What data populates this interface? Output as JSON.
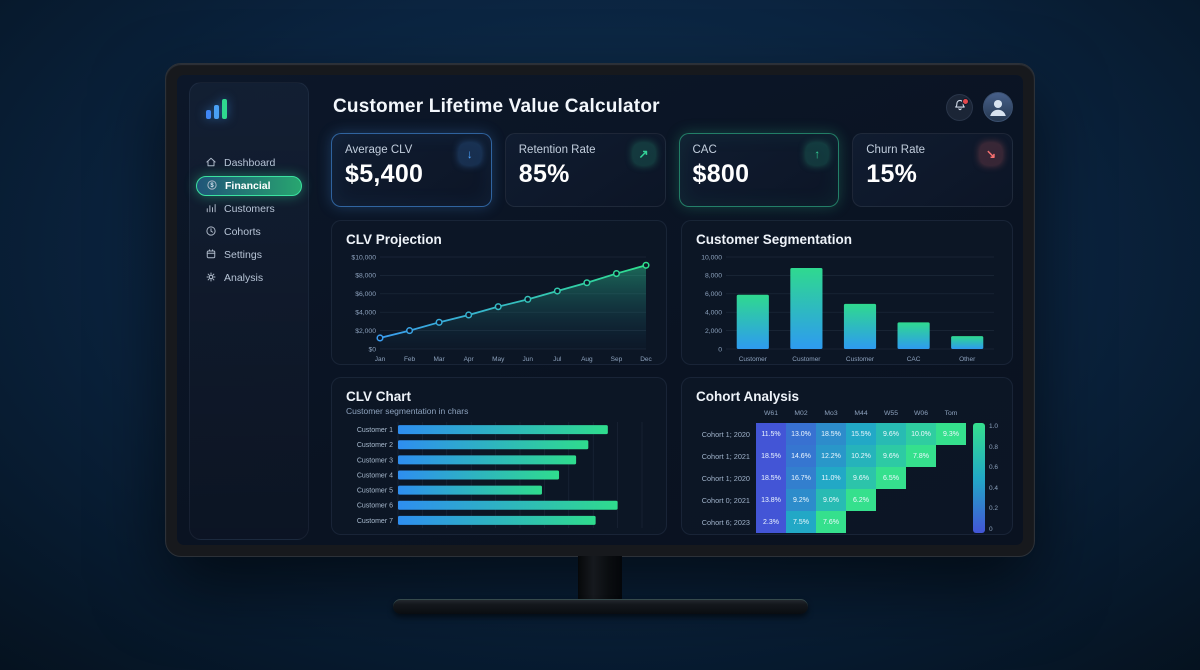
{
  "header": {
    "title": "Customer Lifetime Value Calculator",
    "notification_badge": true
  },
  "colors": {
    "accent_blue": "#3b82f6",
    "accent_green": "#34d399",
    "accent_red": "#ef4444",
    "line_start": "#3b9df0",
    "line_end": "#2fe08d",
    "bar_top": "#2fd98f",
    "bar_bottom": "#2e9bf0",
    "hbar_left": "#2e8ef0",
    "hbar_right": "#2fdc8d",
    "heat_low": "#4355d6",
    "heat_mid": "#22a8c6",
    "heat_high": "#35e08d"
  },
  "sidebar": {
    "logo": "bar-chart-logo",
    "items": [
      {
        "label": "Dashboard",
        "icon": "home-icon",
        "active": false
      },
      {
        "label": "Financial",
        "icon": "dollar-circle-icon",
        "active": true
      },
      {
        "label": "Customers",
        "icon": "bar-chart-icon",
        "active": false
      },
      {
        "label": "Cohorts",
        "icon": "clock-icon",
        "active": false
      },
      {
        "label": "Settings",
        "icon": "calendar-icon",
        "active": false
      },
      {
        "label": "Analysis",
        "icon": "gear-icon",
        "active": false
      }
    ]
  },
  "kpis": [
    {
      "label": "Average CLV",
      "value": "$5,400",
      "icon": "arrow-down-icon",
      "glyph": "↓",
      "accent": "#4da3ff",
      "glow": true
    },
    {
      "label": "Retention Rate",
      "value": "85%",
      "icon": "arrow-up-right-icon",
      "glyph": "↗",
      "accent": "#34d399",
      "glow": false
    },
    {
      "label": "CAC",
      "value": "$800",
      "icon": "arrow-up-icon",
      "glyph": "↑",
      "accent": "#34d399",
      "glow": true
    },
    {
      "label": "Churn Rate",
      "value": "15%",
      "icon": "arrow-down-right-icon",
      "glyph": "↘",
      "accent": "#f87171",
      "glow": false
    }
  ],
  "charts": {
    "projection": {
      "type": "line",
      "title": "CLV Projection",
      "x": [
        "Jan",
        "Feb",
        "Mar",
        "Apr",
        "May",
        "Jun",
        "Jul",
        "Aug",
        "Sep",
        "Dec"
      ],
      "values": [
        1200,
        2000,
        2900,
        3700,
        4600,
        5400,
        6300,
        7200,
        8200,
        9100
      ],
      "y_ticks": [
        "$10,000",
        "$8,000",
        "$6,000",
        "$4,000",
        "$2,000",
        "$0"
      ],
      "ylim": [
        0,
        10000
      ],
      "grid": true
    },
    "segmentation": {
      "type": "bar",
      "title": "Customer Segmentation",
      "categories": [
        "Customer",
        "Customer",
        "Customer",
        "CAC",
        "Other"
      ],
      "values": [
        5900,
        8800,
        4900,
        2900,
        1400
      ],
      "y_ticks": [
        "10,000",
        "8,000",
        "6,000",
        "4,000",
        "2,000",
        "0"
      ],
      "ylim": [
        0,
        10000
      ],
      "grid": true
    },
    "clv_chart": {
      "type": "bar-horizontal",
      "title": "CLV Chart",
      "subtitle": "Customer segmentation in chars",
      "categories": [
        "Customer 1",
        "Customer 2",
        "Customer 3",
        "Customer 4",
        "Customer 5",
        "Customer 6",
        "Customer 7"
      ],
      "values": [
        4300,
        3900,
        3650,
        3300,
        2950,
        4500,
        4050
      ],
      "x_ticks": [
        "0",
        "500",
        "1000",
        "1500",
        "2000",
        "2500",
        "3000",
        "3500",
        "4000",
        "4500",
        "5000"
      ],
      "xlim": [
        0,
        5000
      ],
      "grid": true
    },
    "cohort": {
      "type": "heatmap",
      "title": "Cohort Analysis",
      "columns": [
        "W61",
        "M02",
        "Mo3",
        "M44",
        "W55",
        "W06",
        "Tom"
      ],
      "rows": [
        {
          "label": "Cohort 1; 2020",
          "values": [
            "11.5%",
            "13.0%",
            "18.5%",
            "15.5%",
            "9.6%",
            "10.0%",
            "9.3%"
          ]
        },
        {
          "label": "Cohort 1; 2021",
          "values": [
            "18.5%",
            "14.6%",
            "12.2%",
            "10.2%",
            "9.6%",
            "7.8%"
          ]
        },
        {
          "label": "Cohort 1; 2020",
          "values": [
            "18.5%",
            "16.7%",
            "11.0%",
            "9.6%",
            "6.5%"
          ]
        },
        {
          "label": "Cohort 0; 2021",
          "values": [
            "13.8%",
            "9.2%",
            "9.0%",
            "6.2%"
          ]
        },
        {
          "label": "Cohort 6; 2023",
          "values": [
            "2.3%",
            "7.5%",
            "7.6%"
          ]
        }
      ],
      "colorbar_labels": [
        "1.0",
        "0.8",
        "0.6",
        "0.4",
        "0.2",
        "0"
      ]
    }
  }
}
